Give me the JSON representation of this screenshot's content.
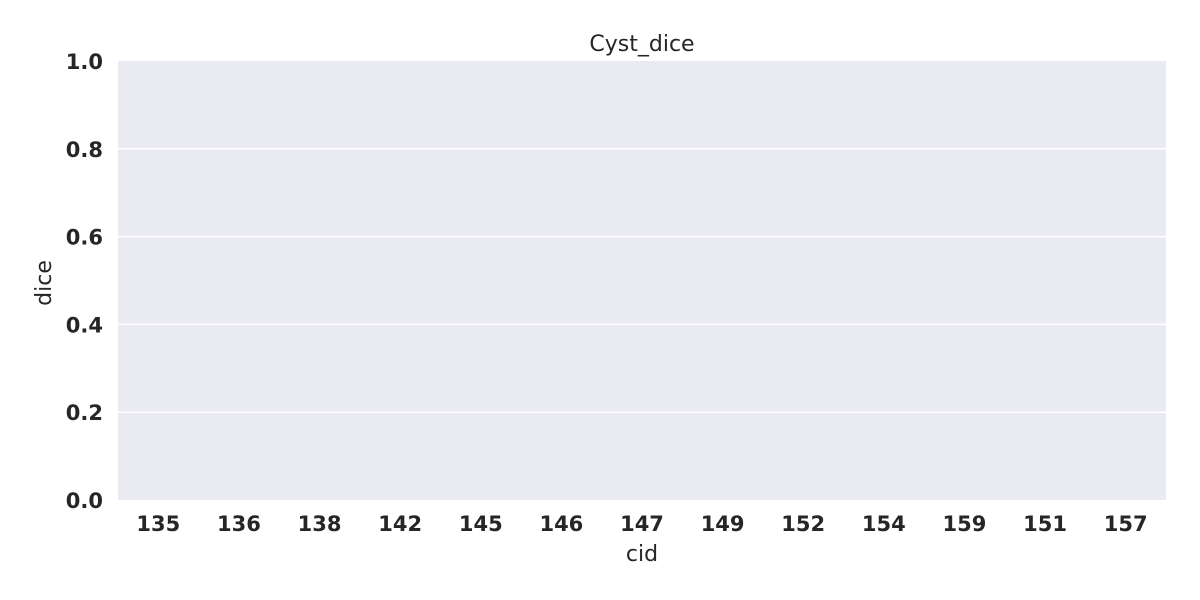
{
  "chart_data": {
    "type": "bar",
    "title": "Cyst_dice",
    "xlabel": "cid",
    "ylabel": "dice",
    "categories": [
      "135",
      "136",
      "138",
      "142",
      "145",
      "146",
      "147",
      "149",
      "152",
      "154",
      "159",
      "151",
      "157"
    ],
    "values": [
      0,
      0,
      0,
      0,
      0,
      0,
      0,
      0,
      0,
      0,
      0,
      0,
      0
    ],
    "ylim": [
      0,
      1.0
    ],
    "yticks": [
      "0.0",
      "0.2",
      "0.4",
      "0.6",
      "0.8",
      "1.0"
    ],
    "grid": true,
    "legend": "none"
  },
  "colors": {
    "plot_background": "#eaeaf2",
    "grid": "#ffffff",
    "text": "#262626"
  }
}
